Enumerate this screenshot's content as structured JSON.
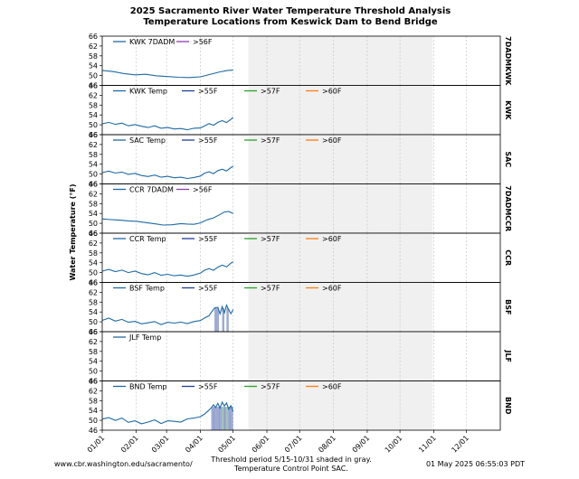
{
  "chart_data": {
    "type": "line",
    "title": "2025 Sacramento River Water Temperature Threshold Analysis",
    "subtitle": "Temperature Locations from Keswick Dam to Bend Bridge",
    "ylabel": "Water Temperature (°F)",
    "ylim": [
      46,
      66
    ],
    "yticks": [
      "66",
      "62",
      "58",
      "54",
      "50",
      "46"
    ],
    "xlim_days": [
      0,
      365
    ],
    "month_ticks": [
      "01/01",
      "02/01",
      "03/01",
      "04/01",
      "05/01",
      "06/01",
      "07/01",
      "08/01",
      "09/01",
      "10/01",
      "11/01",
      "12/01"
    ],
    "month_days": [
      0,
      31,
      59,
      90,
      120,
      151,
      181,
      212,
      243,
      273,
      304,
      334
    ],
    "threshold_shading": {
      "start_day": 134,
      "end_day": 303,
      "color": "#f0f0f0"
    },
    "colors": {
      "line": "#1f6aa5",
      "gt55": "#1f3d99",
      "gt56": "#8a3cb0",
      "gt57": "#2ca02c",
      "gt60": "#ff7f0e"
    },
    "panels": [
      {
        "station": "7DADMKWK",
        "legend": [
          "KWK 7DADM",
          ">56F"
        ],
        "series": [
          [
            0,
            52.1
          ],
          [
            10,
            51.6
          ],
          [
            20,
            50.8
          ],
          [
            30,
            50.3
          ],
          [
            40,
            50.5
          ],
          [
            50,
            49.9
          ],
          [
            60,
            49.6
          ],
          [
            70,
            49.3
          ],
          [
            80,
            49.2
          ],
          [
            90,
            49.5
          ],
          [
            100,
            50.6
          ],
          [
            108,
            51.5
          ],
          [
            115,
            52.1
          ],
          [
            120,
            52.2
          ]
        ],
        "gt55_days": [],
        "gt57_days": []
      },
      {
        "station": "KWK",
        "legend": [
          "KWK Temp",
          ">55F",
          ">57F",
          ">60F"
        ],
        "series": [
          [
            0,
            50.4
          ],
          [
            6,
            51
          ],
          [
            12,
            50.2
          ],
          [
            18,
            50.7
          ],
          [
            24,
            49.6
          ],
          [
            30,
            50.1
          ],
          [
            36,
            49.4
          ],
          [
            42,
            48.9
          ],
          [
            48,
            49.6
          ],
          [
            54,
            48.6
          ],
          [
            60,
            48.9
          ],
          [
            66,
            48.3
          ],
          [
            72,
            48.5
          ],
          [
            78,
            48.0
          ],
          [
            84,
            48.6
          ],
          [
            90,
            48.7
          ],
          [
            94,
            49.6
          ],
          [
            98,
            50.5
          ],
          [
            102,
            49.8
          ],
          [
            106,
            51.0
          ],
          [
            110,
            51.7
          ],
          [
            114,
            50.9
          ],
          [
            118,
            52.2
          ],
          [
            120,
            53.0
          ]
        ],
        "gt55_days": [],
        "gt57_days": []
      },
      {
        "station": "SAC",
        "legend": [
          "SAC Temp",
          ">55F",
          ">57F",
          ">60F"
        ],
        "series": [
          [
            0,
            50.6
          ],
          [
            6,
            51.2
          ],
          [
            12,
            50.4
          ],
          [
            18,
            50.8
          ],
          [
            24,
            49.9
          ],
          [
            30,
            50.3
          ],
          [
            36,
            49.4
          ],
          [
            42,
            49.0
          ],
          [
            48,
            49.6
          ],
          [
            54,
            48.7
          ],
          [
            60,
            49.1
          ],
          [
            66,
            48.5
          ],
          [
            72,
            48.7
          ],
          [
            78,
            48.2
          ],
          [
            84,
            48.6
          ],
          [
            90,
            49.2
          ],
          [
            94,
            50.4
          ],
          [
            98,
            50.9
          ],
          [
            102,
            50.2
          ],
          [
            106,
            51.4
          ],
          [
            110,
            52.0
          ],
          [
            114,
            51.3
          ],
          [
            118,
            52.6
          ],
          [
            120,
            53.2
          ]
        ],
        "gt55_days": [],
        "gt57_days": []
      },
      {
        "station": "7DADMCCR",
        "legend": [
          "CCR 7DADM",
          ">56F"
        ],
        "series": [
          [
            0,
            51.8
          ],
          [
            8,
            51.5
          ],
          [
            16,
            51.3
          ],
          [
            24,
            51.0
          ],
          [
            32,
            50.8
          ],
          [
            40,
            50.3
          ],
          [
            48,
            49.8
          ],
          [
            56,
            49.3
          ],
          [
            64,
            49.4
          ],
          [
            72,
            49.9
          ],
          [
            78,
            49.7
          ],
          [
            84,
            49.6
          ],
          [
            90,
            50.2
          ],
          [
            96,
            51.4
          ],
          [
            102,
            52.2
          ],
          [
            108,
            53.6
          ],
          [
            112,
            54.6
          ],
          [
            116,
            54.8
          ],
          [
            120,
            54.0
          ]
        ],
        "gt55_days": [],
        "gt57_days": []
      },
      {
        "station": "CCR",
        "legend": [
          "CCR Temp",
          ">55F",
          ">57F",
          ">60F"
        ],
        "series": [
          [
            0,
            50.6
          ],
          [
            6,
            51.3
          ],
          [
            12,
            50.4
          ],
          [
            18,
            51.0
          ],
          [
            24,
            50.0
          ],
          [
            30,
            50.6
          ],
          [
            36,
            49.6
          ],
          [
            42,
            49.1
          ],
          [
            48,
            50.0
          ],
          [
            54,
            48.9
          ],
          [
            60,
            49.3
          ],
          [
            66,
            48.7
          ],
          [
            72,
            49.0
          ],
          [
            78,
            48.5
          ],
          [
            84,
            49.0
          ],
          [
            90,
            49.8
          ],
          [
            94,
            51.0
          ],
          [
            98,
            51.6
          ],
          [
            102,
            50.9
          ],
          [
            106,
            52.2
          ],
          [
            110,
            53.0
          ],
          [
            114,
            52.3
          ],
          [
            118,
            53.8
          ],
          [
            120,
            54.4
          ]
        ],
        "gt55_days": [],
        "gt57_days": []
      },
      {
        "station": "BSF",
        "legend": [
          "BSF Temp",
          ">55F",
          ">57F",
          ">60F"
        ],
        "series": [
          [
            0,
            50.6
          ],
          [
            6,
            51.5
          ],
          [
            12,
            50.3
          ],
          [
            18,
            51.0
          ],
          [
            24,
            49.8
          ],
          [
            30,
            50.2
          ],
          [
            36,
            49.2
          ],
          [
            42,
            49.6
          ],
          [
            48,
            50.1
          ],
          [
            54,
            48.9
          ],
          [
            60,
            49.8
          ],
          [
            66,
            49.5
          ],
          [
            72,
            49.9
          ],
          [
            78,
            49.3
          ],
          [
            84,
            50.1
          ],
          [
            90,
            50.5
          ],
          [
            94,
            51.6
          ],
          [
            98,
            52.5
          ],
          [
            100,
            53.8
          ],
          [
            103,
            55.6
          ],
          [
            106,
            55.9
          ],
          [
            108,
            53.2
          ],
          [
            110,
            56.2
          ],
          [
            112,
            53.6
          ],
          [
            114,
            56.8
          ],
          [
            116,
            54.9
          ],
          [
            118,
            53.3
          ],
          [
            120,
            55.0
          ]
        ],
        "gt55_days": [
          103,
          104,
          105,
          106,
          110,
          111,
          114,
          115
        ],
        "gt57_days": []
      },
      {
        "station": "JLF",
        "legend": [
          "JLF Temp"
        ],
        "series": [],
        "gt55_days": [],
        "gt57_days": []
      },
      {
        "station": "BND",
        "legend": [
          "BND Temp",
          ">55F",
          ">57F",
          ">60F"
        ],
        "series": [
          [
            0,
            50.5
          ],
          [
            6,
            51.1
          ],
          [
            12,
            50.0
          ],
          [
            18,
            50.9
          ],
          [
            24,
            49.2
          ],
          [
            30,
            49.8
          ],
          [
            36,
            48.6
          ],
          [
            42,
            49.3
          ],
          [
            48,
            50.2
          ],
          [
            54,
            48.7
          ],
          [
            60,
            49.8
          ],
          [
            66,
            49.6
          ],
          [
            72,
            49.3
          ],
          [
            78,
            50.6
          ],
          [
            84,
            50.9
          ],
          [
            90,
            51.5
          ],
          [
            94,
            52.6
          ],
          [
            98,
            54.2
          ],
          [
            100,
            55.1
          ],
          [
            102,
            56.3
          ],
          [
            104,
            55.2
          ],
          [
            106,
            56.9
          ],
          [
            108,
            55.0
          ],
          [
            110,
            57.4
          ],
          [
            112,
            55.8
          ],
          [
            114,
            57.1
          ],
          [
            116,
            54.6
          ],
          [
            118,
            56.0
          ],
          [
            120,
            53.5
          ]
        ],
        "gt55_days": [
          100,
          101,
          102,
          103,
          104,
          105,
          106,
          107,
          108,
          109,
          110,
          111,
          112,
          113,
          114,
          115,
          116,
          117,
          118,
          119
        ],
        "gt57_days": [
          110,
          114
        ]
      }
    ]
  },
  "footer": {
    "left": "www.cbr.washington.edu/sacramento/",
    "center_line1": "Threshold period 5/15-10/31 shaded in gray.",
    "center_line2": "Temperature Control Point SAC.",
    "right": "01 May 2025 06:55:03 PDT"
  }
}
